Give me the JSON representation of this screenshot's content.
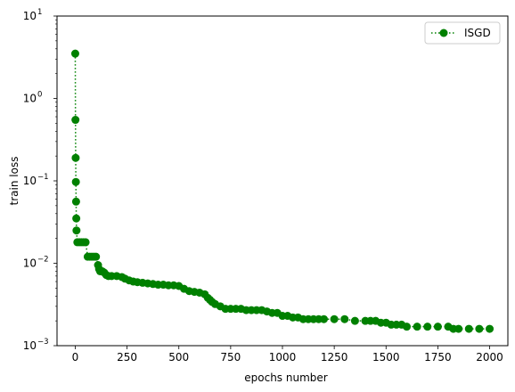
{
  "chart_data": {
    "type": "line",
    "title": "",
    "xlabel": "epochs number",
    "ylabel": "train loss",
    "xlim": [
      -88,
      2088
    ],
    "ylim": [
      0.001,
      10
    ],
    "yscale": "log",
    "grid": false,
    "legend_position": "top-right",
    "x_ticks": [
      {
        "value": 0,
        "label": "0"
      },
      {
        "value": 250,
        "label": "250"
      },
      {
        "value": 500,
        "label": "500"
      },
      {
        "value": 750,
        "label": "750"
      },
      {
        "value": 1000,
        "label": "1000"
      },
      {
        "value": 1250,
        "label": "1250"
      },
      {
        "value": 1500,
        "label": "1500"
      },
      {
        "value": 1750,
        "label": "1750"
      },
      {
        "value": 2000,
        "label": "2000"
      }
    ],
    "y_ticks": [
      {
        "value": 0.001,
        "base": "10",
        "exp": "−3"
      },
      {
        "value": 0.01,
        "base": "10",
        "exp": "−2"
      },
      {
        "value": 0.1,
        "base": "10",
        "exp": "−1"
      },
      {
        "value": 1,
        "base": "10",
        "exp": "0"
      },
      {
        "value": 10,
        "base": "10",
        "exp": "1"
      }
    ],
    "series": [
      {
        "name": "ISGD",
        "color": "#008000",
        "line_style": "dotted",
        "marker": "circle",
        "x": [
          0,
          1,
          2,
          3,
          4,
          5,
          6,
          10,
          20,
          30,
          40,
          50,
          60,
          70,
          80,
          90,
          100,
          110,
          115,
          120,
          130,
          140,
          150,
          160,
          175,
          200,
          225,
          240,
          260,
          280,
          300,
          325,
          350,
          375,
          400,
          425,
          450,
          475,
          500,
          525,
          550,
          575,
          600,
          625,
          640,
          650,
          660,
          675,
          700,
          725,
          750,
          775,
          800,
          825,
          850,
          875,
          900,
          925,
          950,
          975,
          1000,
          1025,
          1050,
          1075,
          1100,
          1125,
          1150,
          1175,
          1200,
          1250,
          1300,
          1350,
          1400,
          1425,
          1450,
          1475,
          1500,
          1525,
          1550,
          1575,
          1600,
          1650,
          1700,
          1750,
          1800,
          1825,
          1850,
          1900,
          1950,
          2000
        ],
        "y": [
          3.5,
          0.55,
          0.19,
          0.097,
          0.056,
          0.035,
          0.025,
          0.018,
          0.018,
          0.018,
          0.018,
          0.018,
          0.012,
          0.012,
          0.012,
          0.012,
          0.012,
          0.0095,
          0.0085,
          0.008,
          0.008,
          0.0077,
          0.0072,
          0.007,
          0.007,
          0.007,
          0.0068,
          0.0065,
          0.0062,
          0.006,
          0.0059,
          0.0058,
          0.0057,
          0.0056,
          0.0055,
          0.0055,
          0.0054,
          0.0054,
          0.0053,
          0.0049,
          0.0046,
          0.0045,
          0.0044,
          0.0042,
          0.0038,
          0.0036,
          0.0034,
          0.0032,
          0.003,
          0.0028,
          0.0028,
          0.0028,
          0.0028,
          0.0027,
          0.0027,
          0.0027,
          0.0027,
          0.0026,
          0.0025,
          0.0025,
          0.0023,
          0.0023,
          0.0022,
          0.0022,
          0.0021,
          0.0021,
          0.0021,
          0.0021,
          0.0021,
          0.0021,
          0.0021,
          0.002,
          0.002,
          0.002,
          0.002,
          0.0019,
          0.0019,
          0.0018,
          0.0018,
          0.0018,
          0.0017,
          0.0017,
          0.0017,
          0.0017,
          0.0017,
          0.0016,
          0.0016,
          0.0016,
          0.0016,
          0.0016
        ]
      }
    ]
  }
}
